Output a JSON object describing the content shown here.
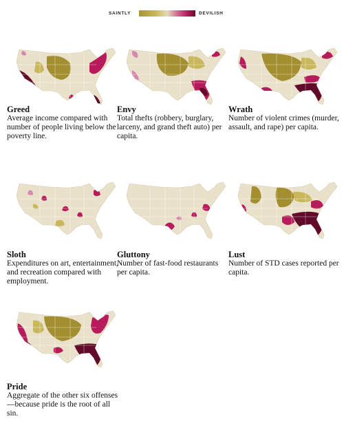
{
  "legend": {
    "low_label": "SAINTLY",
    "high_label": "DEVILISH",
    "colors": [
      "#a89530",
      "#c9b858",
      "#e3dabb",
      "#cf6a94",
      "#b81e5e",
      "#6a0c2c"
    ]
  },
  "map_colors": {
    "base": "#e9e1c9",
    "saintly": "#a38f2f",
    "saintly_light": "#c9b75b",
    "pink": "#d887b0",
    "devilish": "#b71b5b",
    "devilish_dark": "#620a29",
    "state_line": "#ffffff"
  },
  "panels": [
    {
      "title": "Greed",
      "description": "Average income compared with number of people living below the poverty line."
    },
    {
      "title": "Envy",
      "description": "Total thefts (robbery, burglary, larceny, and grand theft auto) per capita."
    },
    {
      "title": "Wrath",
      "description": "Number of violent crimes (murder, assault, and rape) per capita."
    },
    {
      "title": "Sloth",
      "description": "Expenditures on art, entertainment, and recreation compared with employment."
    },
    {
      "title": "Gluttony",
      "description": "Number of fast-food restaurants per capita."
    },
    {
      "title": "Lust",
      "description": "Number of STD cases reported per capita."
    },
    {
      "title": "Pride",
      "description": "Aggregate of the other six offenses—because pride is the root of all sin."
    }
  ]
}
